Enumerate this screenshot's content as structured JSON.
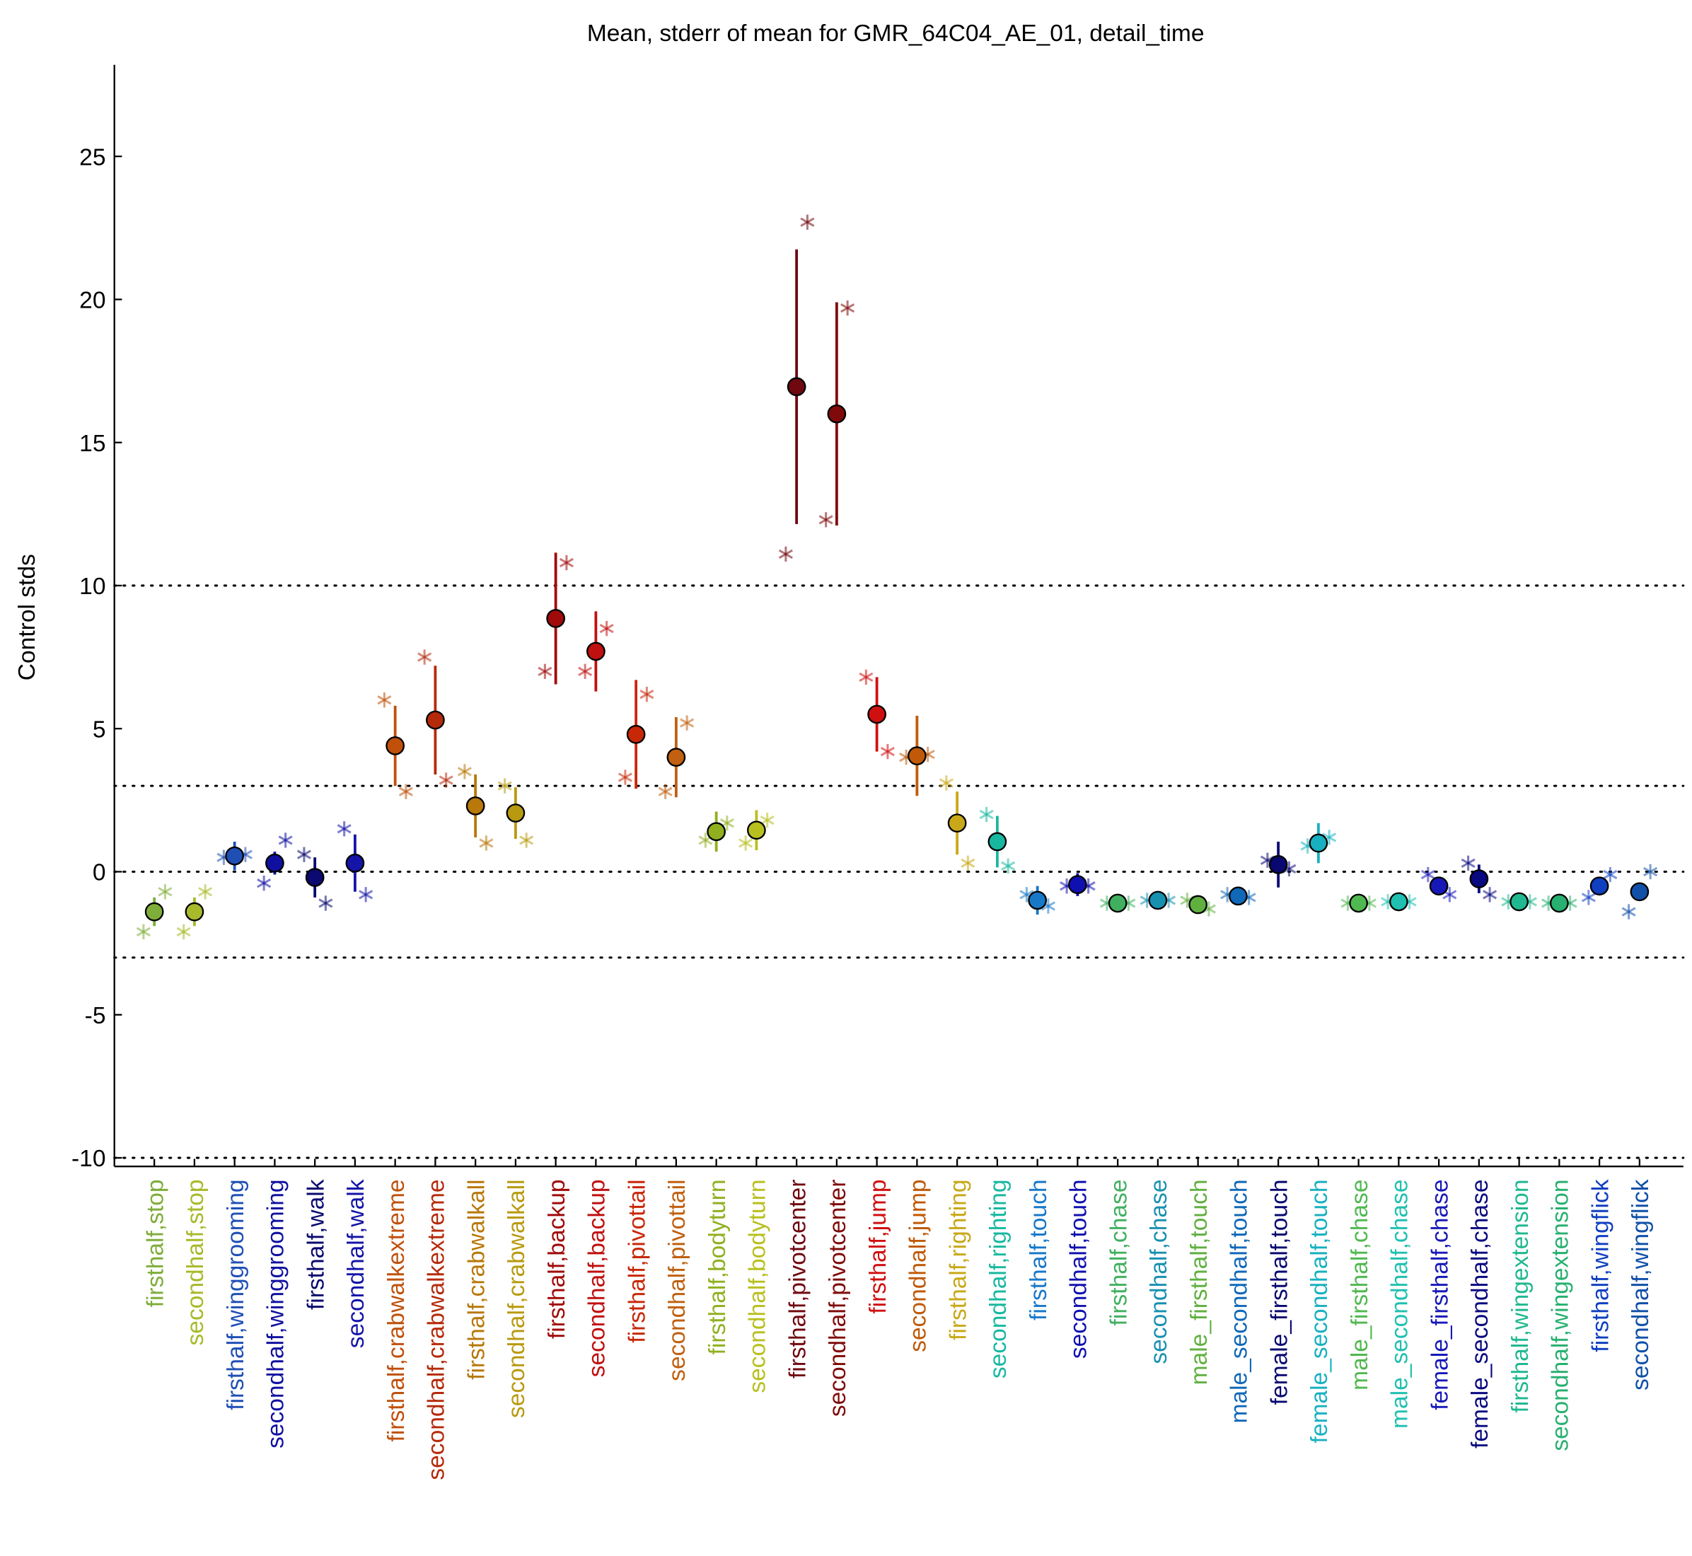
{
  "chart_data": {
    "type": "errorbar",
    "title": "Mean, stderr of mean for GMR_64C04_AE_01, detail_time",
    "y_label": "Control stds",
    "categories": [
      "firsthalf,stop",
      "secondhalf,stop",
      "firsthalf,winggrooming",
      "secondhalf,winggrooming",
      "firsthalf,walk",
      "secondhalf,walk",
      "firsthalf,crabwalkextreme",
      "secondhalf,crabwalkextreme",
      "firsthalf,crabwalkall",
      "secondhalf,crabwalkall",
      "firsthalf,backup",
      "secondhalf,backup",
      "firsthalf,pivottail",
      "secondhalf,pivottail",
      "firsthalf,bodyturn",
      "secondhalf,bodyturn",
      "firsthalf,pivotcenter",
      "secondhalf,pivotcenter",
      "firsthalf,jump",
      "secondhalf,jump",
      "firsthalf,righting",
      "secondhalf,righting",
      "firsthalf,touch",
      "secondhalf,touch",
      "firsthalf,chase",
      "secondhalf,chase",
      "male_firsthalf,touch",
      "male_secondhalf,touch",
      "female_firsthalf,touch",
      "female_secondhalf,touch",
      "male_firsthalf,chase",
      "male_secondhalf,chase",
      "female_firsthalf,chase",
      "female_secondhalf,chase",
      "firsthalf,wingextension",
      "secondhalf,wingextension",
      "firsthalf,wingflick",
      "secondhalf,wingflick"
    ],
    "values": [
      -1.4,
      -1.4,
      0.55,
      0.3,
      -0.2,
      0.3,
      4.4,
      5.3,
      2.3,
      2.05,
      8.85,
      7.7,
      4.8,
      4.0,
      1.4,
      1.45,
      16.95,
      16.0,
      5.5,
      4.05,
      1.7,
      1.05,
      -1.0,
      -0.45,
      -1.1,
      -1.0,
      -1.15,
      -0.85,
      0.25,
      1.0,
      -1.1,
      -1.05,
      -0.5,
      -0.25,
      -1.05,
      -1.1,
      -0.5,
      -0.7
    ],
    "errors": [
      0.5,
      0.5,
      0.5,
      0.4,
      0.7,
      1.0,
      1.4,
      1.9,
      1.1,
      0.9,
      2.3,
      1.4,
      1.9,
      1.4,
      0.7,
      0.7,
      4.8,
      3.9,
      1.3,
      1.4,
      1.1,
      0.9,
      0.5,
      0.4,
      0.2,
      0.2,
      0.2,
      0.3,
      0.8,
      0.7,
      0.15,
      0.15,
      0.3,
      0.5,
      0.15,
      0.15,
      0.3,
      0.3
    ],
    "replicate_values": [
      [
        -2.1,
        -0.7
      ],
      [
        -2.1,
        -0.7
      ],
      [
        0.5,
        0.6
      ],
      [
        -0.4,
        1.1
      ],
      [
        0.6,
        -1.1
      ],
      [
        1.5,
        -0.8
      ],
      [
        6.0,
        2.8
      ],
      [
        7.5,
        3.2
      ],
      [
        3.5,
        1.0
      ],
      [
        3.0,
        1.1
      ],
      [
        7.0,
        10.8
      ],
      [
        7.0,
        8.5
      ],
      [
        3.3,
        6.2
      ],
      [
        2.8,
        5.2
      ],
      [
        1.1,
        1.7
      ],
      [
        1.0,
        1.8
      ],
      [
        11.1,
        22.7
      ],
      [
        12.3,
        19.7
      ],
      [
        6.8,
        4.2
      ],
      [
        4.0,
        4.1
      ],
      [
        3.1,
        0.3
      ],
      [
        2.0,
        0.2
      ],
      [
        -0.8,
        -1.2
      ],
      [
        -0.5,
        -0.5
      ],
      [
        -1.1,
        -1.1
      ],
      [
        -1.0,
        -1.0
      ],
      [
        -1.0,
        -1.3
      ],
      [
        -0.8,
        -0.9
      ],
      [
        0.4,
        0.1
      ],
      [
        0.9,
        1.2
      ],
      [
        -1.1,
        -1.1
      ],
      [
        -1.05,
        -1.05
      ],
      [
        -0.1,
        -0.8
      ],
      [
        0.3,
        -0.8
      ],
      [
        -1.05,
        -1.05
      ],
      [
        -1.1,
        -1.1
      ],
      [
        -0.9,
        -0.1
      ],
      [
        -1.4,
        0.0
      ]
    ],
    "colors": [
      "#7fad3a",
      "#a8b92a",
      "#1f4fb5",
      "#1010a0",
      "#0a0a70",
      "#1414a8",
      "#c0500a",
      "#b52a0a",
      "#b8780a",
      "#b89a10",
      "#a00a0a",
      "#c01010",
      "#c82808",
      "#c06010",
      "#90b020",
      "#b8c020",
      "#700810",
      "#800a0a",
      "#d01010",
      "#c05a08",
      "#c8a818",
      "#18b8a0",
      "#1878c8",
      "#1010b0",
      "#40b060",
      "#1890b0",
      "#60b040",
      "#1068b8",
      "#080870",
      "#18b0c0",
      "#50b850",
      "#20c0b0",
      "#1818b8",
      "#080880",
      "#20b890",
      "#28b070",
      "#1040c0",
      "#1050a8"
    ],
    "ylim": [
      -10.3,
      28.2
    ],
    "yticks": [
      -10,
      -5,
      0,
      5,
      10,
      15,
      20,
      25
    ],
    "reference_lines": [
      -10,
      -3,
      0,
      3,
      10
    ]
  }
}
